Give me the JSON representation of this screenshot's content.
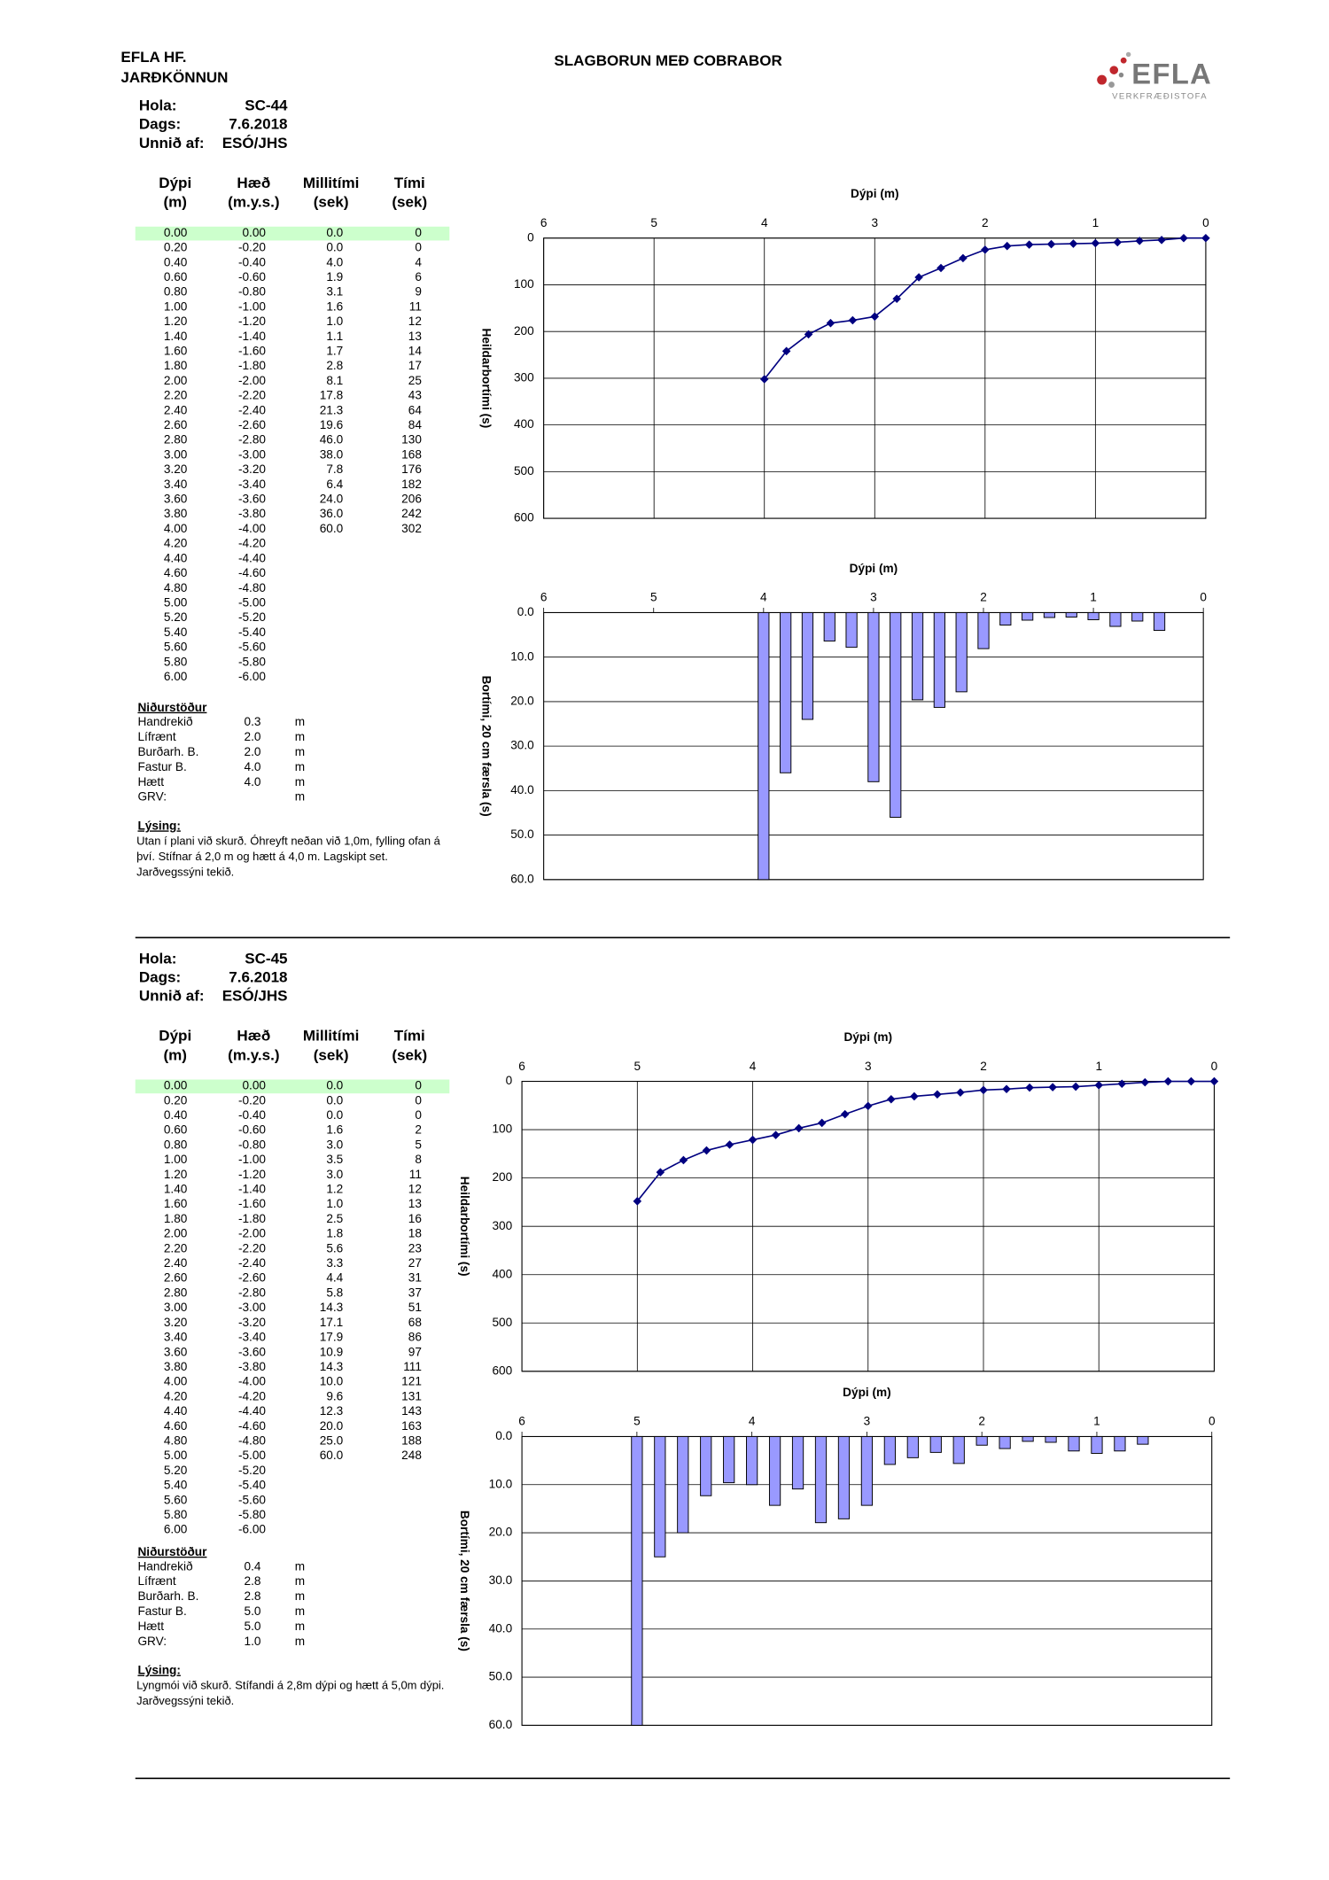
{
  "header": {
    "company": "EFLA HF.",
    "department": "JARÐKÖNNUN",
    "title": "SLAGBORUN MEÐ COBRABOR",
    "logo": "EFLA",
    "logo_sub": "VERKFRÆÐISTOFA"
  },
  "holes": [
    {
      "info": [
        {
          "label": "Hola:",
          "value": "SC-44"
        },
        {
          "label": "Dags:",
          "value": "7.6.2018"
        },
        {
          "label": "Unnið af:",
          "value": "ESÓ/JHS"
        }
      ],
      "table": {
        "header": [
          [
            "Dýpi",
            "(m)"
          ],
          [
            "Hæð",
            "(m.y.s.)"
          ],
          [
            "Millitími",
            "(sek)"
          ],
          [
            "Tími",
            "(sek)"
          ]
        ],
        "rows": [
          [
            "0.00",
            "0.00",
            "0.0",
            "0"
          ],
          [
            "0.20",
            "-0.20",
            "0.0",
            "0"
          ],
          [
            "0.40",
            "-0.40",
            "4.0",
            "4"
          ],
          [
            "0.60",
            "-0.60",
            "1.9",
            "6"
          ],
          [
            "0.80",
            "-0.80",
            "3.1",
            "9"
          ],
          [
            "1.00",
            "-1.00",
            "1.6",
            "11"
          ],
          [
            "1.20",
            "-1.20",
            "1.0",
            "12"
          ],
          [
            "1.40",
            "-1.40",
            "1.1",
            "13"
          ],
          [
            "1.60",
            "-1.60",
            "1.7",
            "14"
          ],
          [
            "1.80",
            "-1.80",
            "2.8",
            "17"
          ],
          [
            "2.00",
            "-2.00",
            "8.1",
            "25"
          ],
          [
            "2.20",
            "-2.20",
            "17.8",
            "43"
          ],
          [
            "2.40",
            "-2.40",
            "21.3",
            "64"
          ],
          [
            "2.60",
            "-2.60",
            "19.6",
            "84"
          ],
          [
            "2.80",
            "-2.80",
            "46.0",
            "130"
          ],
          [
            "3.00",
            "-3.00",
            "38.0",
            "168"
          ],
          [
            "3.20",
            "-3.20",
            "7.8",
            "176"
          ],
          [
            "3.40",
            "-3.40",
            "6.4",
            "182"
          ],
          [
            "3.60",
            "-3.60",
            "24.0",
            "206"
          ],
          [
            "3.80",
            "-3.80",
            "36.0",
            "242"
          ],
          [
            "4.00",
            "-4.00",
            "60.0",
            "302"
          ],
          [
            "4.20",
            "-4.20"
          ],
          [
            "4.40",
            "-4.40"
          ],
          [
            "4.60",
            "-4.60"
          ],
          [
            "4.80",
            "-4.80"
          ],
          [
            "5.00",
            "-5.00"
          ],
          [
            "5.20",
            "-5.20"
          ],
          [
            "5.40",
            "-5.40"
          ],
          [
            "5.60",
            "-5.60"
          ],
          [
            "5.80",
            "-5.80"
          ],
          [
            "6.00",
            "-6.00"
          ]
        ]
      },
      "results": {
        "title": "Niðurstöður",
        "rows": [
          {
            "label": "Handrekið",
            "value": "0.3",
            "unit": "m"
          },
          {
            "label": "Lífrænt",
            "value": "2.0",
            "unit": "m"
          },
          {
            "label": "Burðarh. B.",
            "value": "2.0",
            "unit": "m"
          },
          {
            "label": "Fastur B.",
            "value": "4.0",
            "unit": "m"
          },
          {
            "label": "Hætt",
            "value": "4.0",
            "unit": "m"
          },
          {
            "label": "GRV:",
            "unit": "m"
          }
        ]
      },
      "description": {
        "title": "Lýsing:",
        "text": "Utan í plani við skurð. Óhreyft neðan við 1,0m, fylling ofan á því. Stífnar á 2,0 m og hætt á 4,0 m. Lagskipt set. Jarðvegssýni tekið."
      }
    },
    {
      "info": [
        {
          "label": "Hola:",
          "value": "SC-45"
        },
        {
          "label": "Dags:",
          "value": "7.6.2018"
        },
        {
          "label": "Unnið af:",
          "value": "ESÓ/JHS"
        }
      ],
      "table": {
        "header": [
          [
            "Dýpi",
            "(m)"
          ],
          [
            "Hæð",
            "(m.y.s.)"
          ],
          [
            "Millitími",
            "(sek)"
          ],
          [
            "Tími",
            "(sek)"
          ]
        ],
        "rows": [
          [
            "0.00",
            "0.00",
            "0.0",
            "0"
          ],
          [
            "0.20",
            "-0.20",
            "0.0",
            "0"
          ],
          [
            "0.40",
            "-0.40",
            "0.0",
            "0"
          ],
          [
            "0.60",
            "-0.60",
            "1.6",
            "2"
          ],
          [
            "0.80",
            "-0.80",
            "3.0",
            "5"
          ],
          [
            "1.00",
            "-1.00",
            "3.5",
            "8"
          ],
          [
            "1.20",
            "-1.20",
            "3.0",
            "11"
          ],
          [
            "1.40",
            "-1.40",
            "1.2",
            "12"
          ],
          [
            "1.60",
            "-1.60",
            "1.0",
            "13"
          ],
          [
            "1.80",
            "-1.80",
            "2.5",
            "16"
          ],
          [
            "2.00",
            "-2.00",
            "1.8",
            "18"
          ],
          [
            "2.20",
            "-2.20",
            "5.6",
            "23"
          ],
          [
            "2.40",
            "-2.40",
            "3.3",
            "27"
          ],
          [
            "2.60",
            "-2.60",
            "4.4",
            "31"
          ],
          [
            "2.80",
            "-2.80",
            "5.8",
            "37"
          ],
          [
            "3.00",
            "-3.00",
            "14.3",
            "51"
          ],
          [
            "3.20",
            "-3.20",
            "17.1",
            "68"
          ],
          [
            "3.40",
            "-3.40",
            "17.9",
            "86"
          ],
          [
            "3.60",
            "-3.60",
            "10.9",
            "97"
          ],
          [
            "3.80",
            "-3.80",
            "14.3",
            "111"
          ],
          [
            "4.00",
            "-4.00",
            "10.0",
            "121"
          ],
          [
            "4.20",
            "-4.20",
            "9.6",
            "131"
          ],
          [
            "4.40",
            "-4.40",
            "12.3",
            "143"
          ],
          [
            "4.60",
            "-4.60",
            "20.0",
            "163"
          ],
          [
            "4.80",
            "-4.80",
            "25.0",
            "188"
          ],
          [
            "5.00",
            "-5.00",
            "60.0",
            "248"
          ],
          [
            "5.20",
            "-5.20"
          ],
          [
            "5.40",
            "-5.40"
          ],
          [
            "5.60",
            "-5.60"
          ],
          [
            "5.80",
            "-5.80"
          ],
          [
            "6.00",
            "-6.00"
          ]
        ]
      },
      "results": {
        "title": "Niðurstöður",
        "rows": [
          {
            "label": "Handrekið",
            "value": "0.4",
            "unit": "m"
          },
          {
            "label": "Lífrænt",
            "value": "2.8",
            "unit": "m"
          },
          {
            "label": "Burðarh. B.",
            "value": "2.8",
            "unit": "m"
          },
          {
            "label": "Fastur B.",
            "value": "5.0",
            "unit": "m"
          },
          {
            "label": "Hætt",
            "value": "5.0",
            "unit": "m"
          },
          {
            "label": "GRV:",
            "value": "1.0",
            "unit": "m"
          }
        ]
      },
      "description": {
        "title": "Lýsing:",
        "text": "Lyngmói við skurð. Stífandi á 2,8m dýpi og hætt á 5,0m dýpi. Jarðvegssýni tekið."
      }
    }
  ],
  "chart_data": [
    {
      "type": "line",
      "x_label": "Dýpi (m)",
      "y_label": "Heildarbortími (s)",
      "color": "#000080",
      "x_inverted": true,
      "y_inverted": true,
      "xgrid": true,
      "ygrid": true,
      "x": [
        0,
        0.2,
        0.4,
        0.6,
        0.8,
        1,
        1.2,
        1.4,
        1.6,
        1.8,
        2,
        2.2,
        2.4,
        2.6,
        2.8,
        3,
        3.2,
        3.4,
        3.6,
        3.8,
        4
      ],
      "values": [
        0,
        0,
        4,
        6,
        9,
        11,
        12,
        13,
        14,
        17,
        25,
        43,
        64,
        84,
        130,
        168,
        176,
        182,
        206,
        242,
        302
      ],
      "xlim": [
        0,
        6
      ],
      "xticks": [
        6,
        5,
        4,
        3,
        2,
        1,
        0
      ],
      "ylim": [
        0,
        600
      ],
      "yticks": [
        0,
        100,
        200,
        300,
        400,
        500,
        600
      ]
    },
    {
      "type": "bar",
      "x_label": "Dýpi (m)",
      "y_label": "Bortími,  20 cm færsla (s)",
      "color": "#9999ff",
      "x_inverted": true,
      "y_inverted": true,
      "xgrid": false,
      "ygrid": true,
      "x": [
        0,
        0.2,
        0.4,
        0.6,
        0.8,
        1,
        1.2,
        1.4,
        1.6,
        1.8,
        2,
        2.2,
        2.4,
        2.6,
        2.8,
        3,
        3.2,
        3.4,
        3.6,
        3.8,
        4
      ],
      "values": [
        0,
        0,
        4,
        1.9,
        3.1,
        1.6,
        1,
        1.1,
        1.7,
        2.8,
        8.1,
        17.8,
        21.3,
        19.6,
        46,
        38,
        7.8,
        6.4,
        24,
        36,
        60
      ],
      "xlim": [
        0,
        6
      ],
      "xticks": [
        6,
        5,
        4,
        3,
        2,
        1,
        0
      ],
      "ylim": [
        0,
        60
      ],
      "yticks": [
        {
          "value": 0,
          "label": "0.0"
        },
        {
          "value": 10,
          "label": "10.0"
        },
        {
          "value": 20,
          "label": "20.0"
        },
        {
          "value": 30,
          "label": "30.0"
        },
        {
          "value": 40,
          "label": "40.0"
        },
        {
          "value": 50,
          "label": "50.0"
        },
        {
          "value": 60,
          "label": "60.0"
        }
      ]
    },
    {
      "type": "line",
      "x_label": "Dýpi (m)",
      "y_label": "Heildarbortími (s)",
      "color": "#000080",
      "x_inverted": true,
      "y_inverted": true,
      "xgrid": true,
      "ygrid": true,
      "x": [
        0,
        0.2,
        0.4,
        0.6,
        0.8,
        1,
        1.2,
        1.4,
        1.6,
        1.8,
        2,
        2.2,
        2.4,
        2.6,
        2.8,
        3,
        3.2,
        3.4,
        3.6,
        3.8,
        4,
        4.2,
        4.4,
        4.6,
        4.8,
        5
      ],
      "values": [
        0,
        0,
        0,
        2,
        5,
        8,
        11,
        12,
        13,
        16,
        18,
        23,
        27,
        31,
        37,
        51,
        68,
        86,
        97,
        111,
        121,
        131,
        143,
        163,
        188,
        248
      ],
      "xlim": [
        0,
        6
      ],
      "xticks": [
        6,
        5,
        4,
        3,
        2,
        1,
        0
      ],
      "ylim": [
        0,
        600
      ],
      "yticks": [
        0,
        100,
        200,
        300,
        400,
        500,
        600
      ]
    },
    {
      "type": "bar",
      "x_label": "Dýpi (m)",
      "y_label": "Bortími,  20 cm færsla (s)",
      "color": "#9999ff",
      "x_inverted": true,
      "y_inverted": true,
      "xgrid": false,
      "ygrid": true,
      "x": [
        0,
        0.2,
        0.4,
        0.6,
        0.8,
        1,
        1.2,
        1.4,
        1.6,
        1.8,
        2,
        2.2,
        2.4,
        2.6,
        2.8,
        3,
        3.2,
        3.4,
        3.6,
        3.8,
        4,
        4.2,
        4.4,
        4.6,
        4.8,
        5
      ],
      "values": [
        0,
        0,
        0,
        1.6,
        3,
        3.5,
        3,
        1.2,
        1,
        2.5,
        1.8,
        5.6,
        3.3,
        4.4,
        5.8,
        14.3,
        17.1,
        17.9,
        10.9,
        14.3,
        10,
        9.6,
        12.3,
        20,
        25,
        60
      ],
      "xlim": [
        0,
        6
      ],
      "xticks": [
        6,
        5,
        4,
        3,
        2,
        1,
        0
      ],
      "ylim": [
        0,
        60
      ],
      "yticks": [
        {
          "value": 0,
          "label": "0.0"
        },
        {
          "value": 10,
          "label": "10.0"
        },
        {
          "value": 20,
          "label": "20.0"
        },
        {
          "value": 30,
          "label": "30.0"
        },
        {
          "value": 40,
          "label": "40.0"
        },
        {
          "value": 50,
          "label": "50.0"
        },
        {
          "value": 60,
          "label": "60.0"
        }
      ]
    }
  ]
}
